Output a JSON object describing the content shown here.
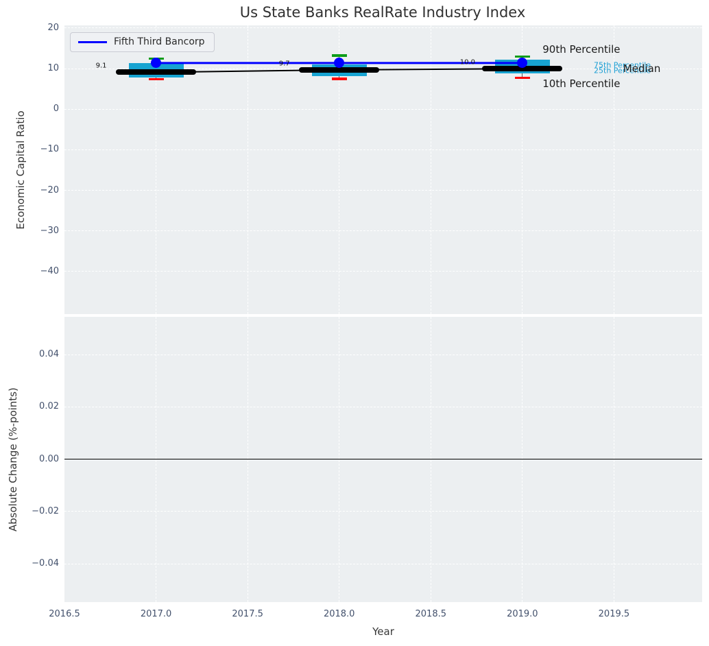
{
  "title": "Us State Banks RealRate Industry Index",
  "legend": {
    "label": "Fifth Third Bancorp",
    "line_color": "#0000ff"
  },
  "colors": {
    "plot_background": "#eceff1",
    "gridline": "#ffffff",
    "box_fill": "#17a3d1",
    "p90_cap": "#0e9c1a",
    "p10_cap": "#ff0000",
    "median": "#000000",
    "company_line": "#0000ff",
    "tick_text": "#42506b",
    "percentile_text_cyan": "#1d9fd4",
    "annotation_text_black": "#1a1a1a"
  },
  "chart_data": [
    {
      "type": "box",
      "title": "Us State Banks RealRate Industry Index",
      "xlabel": "Year",
      "ylabel": "Economic Capital Ratio",
      "xlim": [
        2016.5,
        2019.98
      ],
      "ylim": [
        -50.3,
        20.9
      ],
      "grid": true,
      "legend_position": "upper left",
      "xticks": {
        "values": [
          2016.5,
          2017.0,
          2017.5,
          2018.0,
          2018.5,
          2019.0,
          2019.5
        ],
        "labels": [
          "2016.5",
          "2017.0",
          "2017.5",
          "2018.0",
          "2018.5",
          "2019.0",
          "2019.5"
        ]
      },
      "yticks": {
        "values": [
          20,
          10,
          0,
          -10,
          -20,
          -30,
          -40
        ],
        "labels": [
          "20",
          "10",
          "0",
          "−10",
          "−20",
          "−30",
          "−40"
        ]
      },
      "categories": [
        2017,
        2018,
        2019
      ],
      "boxes": [
        {
          "year": 2017,
          "p10": 7.4,
          "p25": 7.9,
          "median": 9.1,
          "p75": 11.3,
          "p90": 12.5,
          "label": "9.1"
        },
        {
          "year": 2018,
          "p10": 7.5,
          "p25": 8.2,
          "median": 9.7,
          "p75": 11.0,
          "p90": 13.2,
          "label": "9.7"
        },
        {
          "year": 2019,
          "p10": 7.7,
          "p25": 8.8,
          "median": 10.0,
          "p75": 12.2,
          "p90": 13.0,
          "label": "10.0"
        }
      ],
      "series": [
        {
          "name": "Fifth Third Bancorp",
          "x": [
            2017,
            2018,
            2019
          ],
          "values": [
            11.4,
            11.4,
            11.4
          ],
          "color": "#0000ff",
          "marker": "circle"
        },
        {
          "name": "Median",
          "x": [
            2017,
            2018,
            2019
          ],
          "values": [
            9.1,
            9.7,
            10.0
          ],
          "color": "#000000",
          "marker": "none"
        }
      ],
      "annotations": [
        {
          "text": "90th Percentile",
          "x": 2019.11,
          "y": 14.76,
          "color": "#1a1a1a",
          "size": 15
        },
        {
          "text": "75th Percentile",
          "x": 2019.39,
          "y": 10.87,
          "color": "#1d9fd4",
          "size": 11
        },
        {
          "text": "25th Percentile",
          "x": 2019.39,
          "y": 9.51,
          "color": "#1d9fd4",
          "size": 11
        },
        {
          "text": "Median",
          "x": 2019.55,
          "y": 10.05,
          "color": "#1a1a1a",
          "size": 15
        },
        {
          "text": "10th Percentile",
          "x": 2019.11,
          "y": 6.3,
          "color": "#1a1a1a",
          "size": 15
        }
      ]
    },
    {
      "type": "line",
      "xlabel": "Year",
      "ylabel": "Absolute Change (%-points)",
      "xlim": [
        2016.5,
        2019.98
      ],
      "ylim": [
        -0.0545,
        0.0547
      ],
      "grid": true,
      "xticks": {
        "values": [
          2016.5,
          2017.0,
          2017.5,
          2018.0,
          2018.5,
          2019.0,
          2019.5
        ],
        "labels": [
          "2016.5",
          "2017.0",
          "2017.5",
          "2018.0",
          "2018.5",
          "2019.0",
          "2019.5"
        ]
      },
      "yticks": {
        "values": [
          0.04,
          0.02,
          0,
          -0.02,
          -0.04
        ],
        "labels": [
          "0.04",
          "0.02",
          "0.00",
          "−0.02",
          "−0.04"
        ]
      },
      "zero_line": {
        "y": 0,
        "color": "#000000"
      },
      "series": []
    }
  ]
}
